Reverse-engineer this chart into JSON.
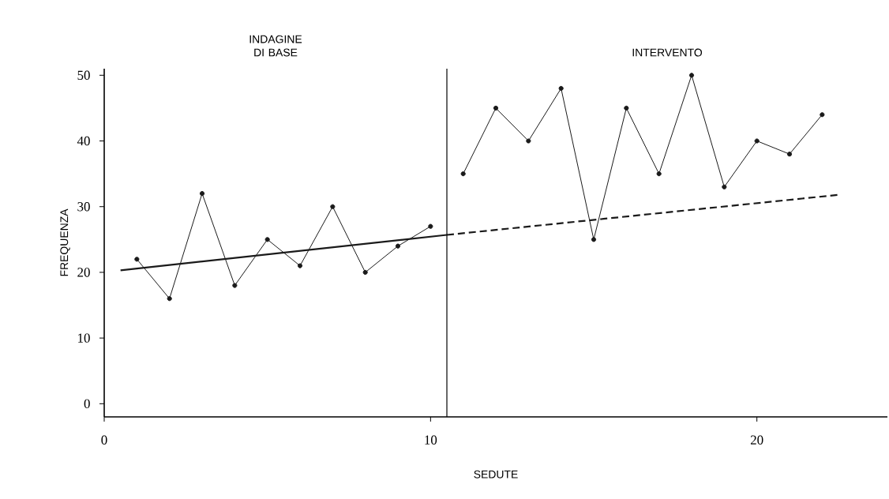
{
  "chart_data": {
    "type": "line",
    "xlabel": "SEDUTE",
    "ylabel": "FREQUENZA",
    "annotations": [
      "INDAGINE DI BASE",
      "INTERVENTO"
    ],
    "xlim": [
      0,
      24
    ],
    "ylim": [
      -2,
      51
    ],
    "xticks": [
      0,
      10,
      20
    ],
    "yticks": [
      0,
      10,
      20,
      30,
      40,
      50
    ],
    "grid": false,
    "ref_lines": [
      {
        "axis": "x",
        "value": 10.5,
        "color": "#000000",
        "line_style": "solid"
      }
    ],
    "series": [
      {
        "color": "#1a1a1a",
        "marker": "circle",
        "line_style": "solid",
        "x": [
          1,
          2,
          3,
          4,
          5,
          6,
          7,
          8,
          9,
          10
        ],
        "values": [
          22,
          16,
          32,
          18,
          25,
          21,
          30,
          20,
          24,
          27
        ]
      },
      {
        "color": "#1a1a1a",
        "marker": "circle",
        "line_style": "solid",
        "x": [
          11,
          12,
          13,
          14,
          15,
          16,
          17,
          18,
          19,
          20,
          21,
          22
        ],
        "values": [
          35,
          45,
          40,
          48,
          25,
          45,
          35,
          50,
          33,
          40,
          38,
          44
        ]
      },
      {
        "color": "#1a1a1a",
        "marker": "none",
        "line_style": "solid",
        "x": [
          0.5,
          10.5
        ],
        "values": [
          20.3,
          25.7
        ]
      },
      {
        "color": "#1a1a1a",
        "marker": "none",
        "line_style": "dashed",
        "x": [
          10.5,
          22.5
        ],
        "values": [
          25.7,
          31.8
        ]
      }
    ]
  }
}
